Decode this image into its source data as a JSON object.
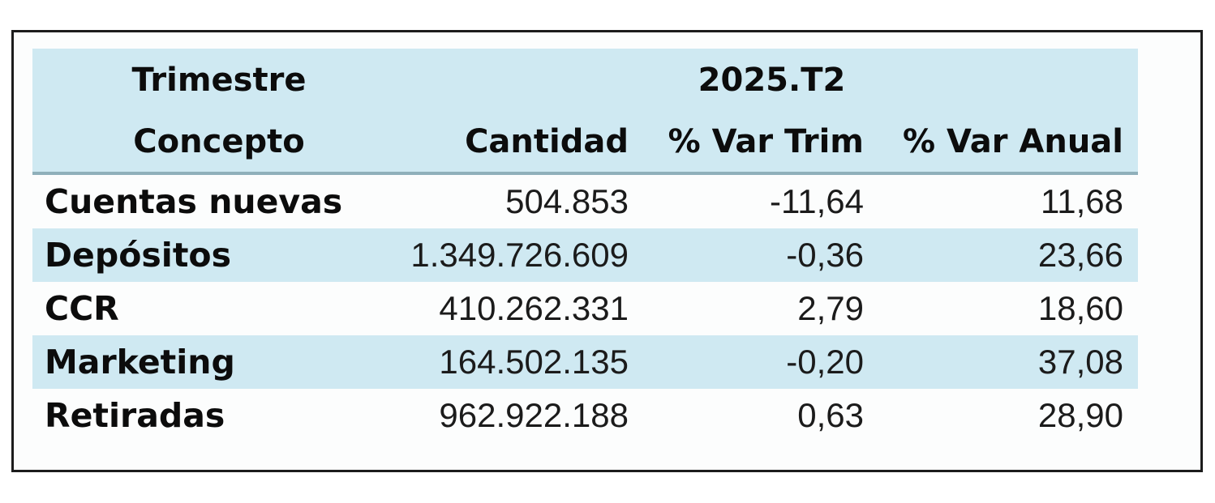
{
  "chart_data": {
    "type": "table",
    "title": "2025.T2",
    "corner_labels": {
      "top": "Trimestre",
      "bottom": "Concepto"
    },
    "columns": [
      "Cantidad",
      "% Var Trim",
      "% Var Anual"
    ],
    "rows": [
      {
        "concepto": "Cuentas nuevas",
        "cantidad": "504.853",
        "var_trim": "-11,64",
        "var_anual": "11,68"
      },
      {
        "concepto": "Depósitos",
        "cantidad": "1.349.726.609",
        "var_trim": "-0,36",
        "var_anual": "23,66"
      },
      {
        "concepto": "CCR",
        "cantidad": "410.262.331",
        "var_trim": "2,79",
        "var_anual": "18,60"
      },
      {
        "concepto": "Marketing",
        "cantidad": "164.502.135",
        "var_trim": "-0,20",
        "var_anual": "37,08"
      },
      {
        "concepto": "Retiradas",
        "cantidad": "962.922.188",
        "var_trim": "0,63",
        "var_anual": "28,90"
      }
    ],
    "numeric_values": {
      "cantidad": [
        504853,
        1349726609,
        410262331,
        164502135,
        962922188
      ],
      "pct_var_trim": [
        -11.64,
        -0.36,
        2.79,
        -0.2,
        0.63
      ],
      "pct_var_anual": [
        11.68,
        23.66,
        18.6,
        37.08,
        28.9
      ]
    },
    "layout_hints": {
      "striped_rows": true,
      "header_bg": "#cfe9f2",
      "stripe_bg": "#cfe9f2",
      "separator_color": "#8fb0ba",
      "border_color": "#1c1c1c",
      "text_color": "#0c0c0c"
    }
  }
}
